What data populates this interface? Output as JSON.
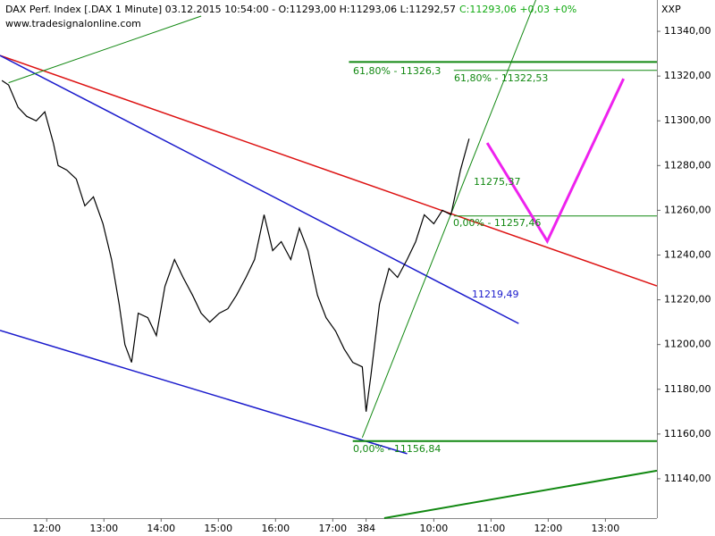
{
  "chart_data": {
    "type": "line",
    "title": "DAX Perf. Index [.DAX  1 Minute] 03.12.2015 10:54:00 - O:11293,00 H:11293,06 L:11292,57",
    "title_change": "C:11293,06 +0,03 +0%",
    "subtitle": "www.tradesignalonline.com",
    "y_axis_label": "XXP",
    "xlim": [
      0,
      689
    ],
    "ylim": [
      11122.4,
      11354
    ],
    "xticks": [
      {
        "value": 49,
        "label": "12:00"
      },
      {
        "value": 109,
        "label": "13:00"
      },
      {
        "value": 169,
        "label": "14:00"
      },
      {
        "value": 229,
        "label": "15:00"
      },
      {
        "value": 289,
        "label": "16:00"
      },
      {
        "value": 349,
        "label": "17:00"
      },
      384,
      {
        "value": 455,
        "label": "10:00"
      },
      {
        "value": 515,
        "label": "11:00"
      },
      {
        "value": 575,
        "label": "12:00"
      },
      {
        "value": 635,
        "label": "13:00"
      }
    ],
    "yticks": [
      {
        "value": 11140,
        "label": "11140,00"
      },
      {
        "value": 11160,
        "label": "11160,00"
      },
      {
        "value": 11180,
        "label": "11180,00"
      },
      {
        "value": 11200,
        "label": "11200,00"
      },
      {
        "value": 11220,
        "label": "11220,00"
      },
      {
        "value": 11240,
        "label": "11240,00"
      },
      {
        "value": 11260,
        "label": "11260,00"
      },
      {
        "value": 11280,
        "label": "11280,00"
      },
      {
        "value": 11300,
        "label": "11300,00"
      },
      {
        "value": 11320,
        "label": "11320,00"
      },
      {
        "value": 11340,
        "label": "11340,00"
      }
    ],
    "series": [
      {
        "color": "#000000",
        "x": [
          2,
          9,
          19,
          28,
          38,
          47,
          56,
          61,
          70,
          80,
          89,
          98,
          108,
          117,
          125,
          131,
          138,
          145,
          155,
          164,
          173,
          183,
          192,
          202,
          211,
          220,
          230,
          239,
          248,
          258,
          267,
          277,
          286,
          295,
          305,
          314,
          323,
          333,
          342,
          352,
          361,
          370,
          380,
          384,
          389,
          398,
          408,
          417,
          427,
          436,
          445,
          455,
          464,
          473,
          483,
          492
        ],
        "values": [
          11318,
          11316,
          11306,
          11302,
          11300,
          11304,
          11290,
          11280,
          11278,
          11274,
          11262,
          11266,
          11254,
          11238,
          11218,
          11200,
          11192,
          11214,
          11212,
          11204,
          11226,
          11238,
          11230,
          11222,
          11214,
          11210,
          11214,
          11216,
          11222,
          11230,
          11238,
          11258,
          11242,
          11246,
          11238,
          11252,
          11242,
          11222,
          11212,
          11206,
          11198,
          11192,
          11190,
          11170,
          11186,
          11218,
          11234,
          11230,
          11238,
          11246,
          11258,
          11254,
          11260,
          11258,
          11278,
          11292
        ]
      }
    ],
    "drawings": [
      {
        "color": "#dd1111",
        "width": 1.5,
        "x": [
          0,
          689
        ],
        "y": [
          11329.2,
          11226.2
        ]
      },
      {
        "color": "#1a1acc",
        "width": 1.5,
        "x": [
          0,
          544
        ],
        "y": [
          11329.2,
          11209.4
        ]
      },
      {
        "color": "#1a1acc",
        "width": 1.5,
        "x": [
          0,
          427
        ],
        "y": [
          11206.3,
          11151.2
        ]
      },
      {
        "color": "#118811",
        "width": 1,
        "x": [
          9,
          211
        ],
        "y": [
          11317,
          11346.8
        ]
      },
      {
        "color": "#118811",
        "width": 1,
        "x": [
          380,
          562
        ],
        "y": [
          11158.4,
          11354
        ]
      },
      {
        "color": "#118811",
        "width": 2,
        "x": [
          366,
          689
        ],
        "y": [
          11326.3,
          11326.3
        ]
      },
      {
        "color": "#118811",
        "width": 1,
        "x": [
          476,
          689
        ],
        "y": [
          11322.53,
          11322.53
        ]
      },
      {
        "color": "#118811",
        "width": 1,
        "x": [
          476,
          689
        ],
        "y": [
          11257.46,
          11257.46
        ]
      },
      {
        "color": "#118811",
        "width": 2,
        "x": [
          370,
          689
        ],
        "y": [
          11156.84,
          11156.84
        ]
      },
      {
        "color": "#118811",
        "width": 2,
        "x": [
          403,
          689
        ],
        "y": [
          11122.4,
          11143.6
        ]
      },
      {
        "color": "#ee22ee",
        "width": 3,
        "x": [
          511,
          574,
          654
        ],
        "y": [
          11290.1,
          11246.2,
          11318.8
        ]
      }
    ],
    "annotations": [
      {
        "text": "61,80% - 11326,3",
        "color": "#118811"
      },
      {
        "text": "61,80% - 11322,53",
        "color": "#118811"
      },
      {
        "text": "11275,37",
        "color": "#118811"
      },
      {
        "text": "0,00% - 11257,46",
        "color": "#118811"
      },
      {
        "text": "11219,49",
        "color": "#1a1acc"
      },
      {
        "text": "0,00% - 11156,84",
        "color": "#118811"
      }
    ]
  }
}
